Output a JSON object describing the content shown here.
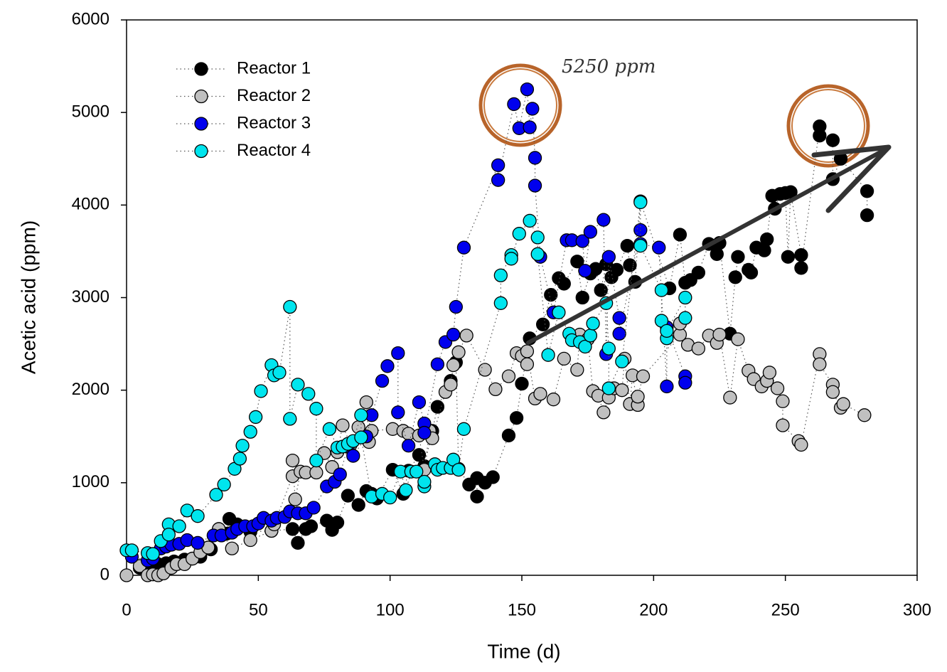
{
  "chart_data": {
    "type": "scatter",
    "x_label": "Time (d)",
    "y_label": "Acetic acid (ppm)",
    "annotation": "5250 ppm",
    "xlim": [
      0,
      300
    ],
    "xticks": [
      0,
      50,
      100,
      150,
      200,
      250,
      300
    ],
    "ylim": [
      0,
      6000
    ],
    "yticks": [
      0,
      1000,
      2000,
      3000,
      4000,
      5000,
      6000
    ],
    "legend": "upper left",
    "connect": "dotted",
    "series": [
      {
        "name": "Reactor 1",
        "color": "#000000",
        "x": [
          5,
          8,
          12,
          15,
          18,
          22,
          25,
          28,
          32,
          35,
          38,
          39,
          42,
          47,
          55,
          63,
          65,
          68,
          70,
          76,
          78,
          80,
          84,
          88,
          91,
          93,
          95,
          101,
          105,
          107,
          111,
          113,
          116,
          118,
          123,
          125,
          126,
          130,
          133,
          133,
          136,
          139,
          145,
          148,
          150,
          153,
          158,
          161,
          164,
          166,
          171,
          173,
          176,
          178,
          180,
          182,
          184,
          186,
          190,
          191,
          193,
          195,
          206,
          210,
          212,
          214,
          217,
          221,
          224,
          225,
          229,
          231,
          232,
          236,
          237,
          239,
          242,
          243,
          245,
          246,
          248,
          250,
          251,
          252,
          256,
          256,
          263,
          263,
          268,
          268,
          271,
          281,
          281
        ],
        "values": [
          80,
          60,
          120,
          130,
          150,
          170,
          180,
          200,
          280,
          500,
          450,
          610,
          550,
          470,
          480,
          500,
          350,
          500,
          530,
          590,
          490,
          570,
          860,
          760,
          910,
          880,
          830,
          1140,
          880,
          1130,
          1300,
          1180,
          1560,
          1820,
          2100,
          2300,
          1150,
          980,
          850,
          1050,
          1000,
          1060,
          1510,
          1700,
          2070,
          2560,
          2710,
          3030,
          3210,
          3150,
          3390,
          3000,
          3260,
          3310,
          3080,
          3360,
          3220,
          3300,
          3560,
          3350,
          3170,
          4040,
          3100,
          3680,
          3160,
          3190,
          3270,
          3580,
          3470,
          3590,
          2610,
          3220,
          3440,
          3300,
          3270,
          3540,
          3510,
          3630,
          4100,
          3960,
          4120,
          4130,
          3440,
          4140,
          3460,
          3320,
          4850,
          4750,
          4700,
          4280,
          4500,
          4150,
          3890
        ]
      },
      {
        "name": "Reactor 2",
        "color": "#c0c0c0",
        "x": [
          0,
          5,
          8,
          10,
          12,
          14,
          17,
          19,
          22,
          25,
          28,
          31,
          35,
          40,
          47,
          55,
          56,
          63,
          63,
          64,
          66,
          68,
          72,
          75,
          78,
          80,
          82,
          85,
          88,
          91,
          92,
          93,
          101,
          105,
          107,
          111,
          113,
          115,
          116,
          121,
          123,
          124,
          126,
          129,
          136,
          140,
          145,
          148,
          150,
          152,
          152,
          155,
          157,
          162,
          166,
          171,
          172,
          175,
          177,
          179,
          181,
          183,
          185,
          188,
          189,
          191,
          192,
          194,
          194,
          196,
          210,
          210,
          213,
          217,
          221,
          224,
          225,
          229,
          232,
          236,
          238,
          241,
          243,
          244,
          247,
          249,
          249,
          255,
          256,
          263,
          263,
          268,
          268,
          271,
          272,
          280
        ],
        "values": [
          0,
          100,
          0,
          10,
          0,
          20,
          80,
          120,
          120,
          180,
          250,
          300,
          500,
          290,
          380,
          480,
          550,
          1070,
          1240,
          820,
          1120,
          1110,
          1110,
          1320,
          1170,
          1330,
          1620,
          1410,
          1600,
          1870,
          1440,
          1560,
          1580,
          1560,
          1530,
          1510,
          1140,
          1560,
          1480,
          1980,
          2060,
          2270,
          2410,
          2590,
          2220,
          2010,
          2150,
          2400,
          2370,
          2280,
          2420,
          1910,
          1960,
          1900,
          2340,
          2220,
          2600,
          2550,
          1990,
          1940,
          1760,
          1920,
          2020,
          2000,
          2340,
          1850,
          2160,
          1840,
          1930,
          2150,
          2600,
          2720,
          2490,
          2450,
          2590,
          2510,
          2600,
          1920,
          2550,
          2210,
          2120,
          2040,
          2100,
          2190,
          2020,
          1880,
          1620,
          1450,
          1410,
          2390,
          2280,
          2060,
          1980,
          1810,
          1850,
          1730
        ]
      },
      {
        "name": "Reactor 3",
        "color": "#0000ee",
        "x": [
          2,
          8,
          10,
          13,
          15,
          17,
          20,
          23,
          27,
          33,
          36,
          40,
          42,
          45,
          48,
          50,
          52,
          55,
          57,
          60,
          62,
          65,
          68,
          71,
          76,
          79,
          81,
          84,
          86,
          91,
          93,
          97,
          99,
          103,
          103,
          107,
          111,
          113,
          113,
          118,
          121,
          124,
          125,
          128,
          141,
          141,
          147,
          149,
          152,
          153,
          154,
          155,
          155,
          157,
          162,
          167,
          169,
          173,
          174,
          176,
          181,
          182,
          183,
          187,
          187,
          195,
          195,
          202,
          205,
          205,
          212,
          212
        ],
        "values": [
          200,
          160,
          180,
          290,
          310,
          330,
          340,
          380,
          350,
          430,
          430,
          460,
          500,
          530,
          530,
          560,
          620,
          590,
          620,
          630,
          690,
          670,
          670,
          730,
          960,
          1010,
          1090,
          1390,
          1290,
          1500,
          1730,
          2100,
          2260,
          2400,
          1760,
          1400,
          1870,
          1640,
          1540,
          2280,
          2520,
          2600,
          2900,
          3540,
          4430,
          4270,
          5090,
          4830,
          5250,
          4840,
          5040,
          4510,
          4210,
          3440,
          2840,
          3620,
          3620,
          3610,
          3290,
          3710,
          3840,
          2390,
          3440,
          2780,
          2610,
          3730,
          3580,
          3540,
          2040,
          2680,
          2150,
          2080
        ]
      },
      {
        "name": "Reactor 4",
        "color": "#00e5ee",
        "x": [
          0,
          2,
          8,
          10,
          13,
          16,
          16,
          20,
          23,
          27,
          34,
          37,
          41,
          43,
          44,
          47,
          49,
          51,
          55,
          56,
          58,
          62,
          62,
          65,
          69,
          72,
          72,
          77,
          80,
          82,
          84,
          86,
          89,
          89,
          93,
          97,
          100,
          104,
          106,
          108,
          110,
          113,
          113,
          117,
          118,
          120,
          123,
          124,
          126,
          128,
          142,
          142,
          146,
          146,
          149,
          153,
          156,
          156,
          160,
          164,
          168,
          169,
          172,
          174,
          176,
          177,
          182,
          183,
          183,
          188,
          195,
          195,
          203,
          203,
          205,
          205,
          212,
          212
        ],
        "values": [
          270,
          270,
          240,
          230,
          370,
          550,
          440,
          530,
          700,
          640,
          870,
          980,
          1150,
          1260,
          1400,
          1550,
          1710,
          1990,
          2270,
          2160,
          2190,
          2900,
          1690,
          2060,
          1960,
          1800,
          1240,
          1580,
          1380,
          1390,
          1420,
          1450,
          1730,
          1490,
          850,
          880,
          840,
          1120,
          920,
          1120,
          1120,
          960,
          1010,
          1200,
          1140,
          1160,
          1160,
          1250,
          1140,
          1580,
          2940,
          3240,
          3460,
          3420,
          3690,
          3830,
          3650,
          3470,
          2380,
          2840,
          2610,
          2540,
          2520,
          2470,
          2590,
          2720,
          2940,
          2450,
          2020,
          2310,
          4030,
          3560,
          3080,
          2750,
          2560,
          2640,
          3000,
          2780
        ]
      }
    ]
  }
}
